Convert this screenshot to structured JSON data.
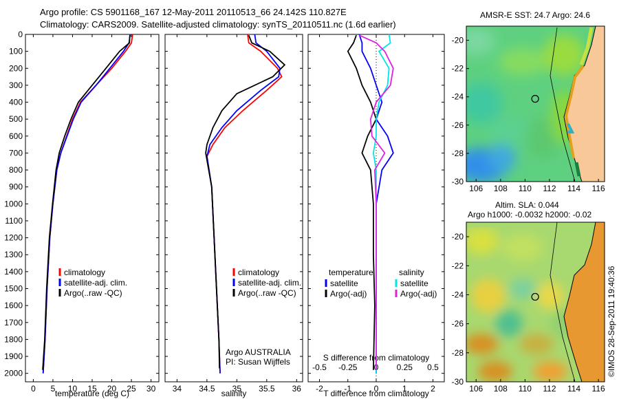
{
  "header": {
    "line1": "Argo profile: CS 5901168_167 12-May-2011 20110513_66 24.142S 110.827E",
    "line2": "Climatology: CARS2009. Satellite-adjusted climatology: synTS_20110511.nc (1.6d earlier)"
  },
  "colors": {
    "climatology": "#ff0000",
    "satellite": "#0000ff",
    "argo": "#000000",
    "sal_satellite": "#00e5e5",
    "sal_argo": "#e020e0"
  },
  "chart_data": [
    {
      "type": "line",
      "name": "temperature-profile",
      "xlabel": "temperature (deg C)",
      "ylabel": "",
      "xlim": [
        -2,
        32
      ],
      "ylim": [
        2050,
        0
      ],
      "xticks": [
        0,
        5,
        10,
        15,
        20,
        25,
        30
      ],
      "yticks": [
        0,
        100,
        200,
        300,
        400,
        500,
        600,
        700,
        800,
        900,
        1000,
        1100,
        1200,
        1300,
        1400,
        1500,
        1600,
        1700,
        1800,
        1900,
        2000
      ],
      "legend": [
        "climatology",
        "satellite-adj. clim.",
        "Argo(..raw -QC)"
      ],
      "legend_position": "lower-center",
      "series": [
        {
          "name": "climatology",
          "x": [
            25.3,
            25.0,
            23.5,
            20.0,
            16.0,
            12.0,
            10.0,
            8.5,
            7.0,
            6.0,
            5.0,
            4.2,
            3.5,
            3.0,
            2.5
          ],
          "y": [
            0,
            50,
            100,
            200,
            300,
            400,
            500,
            600,
            700,
            800,
            1000,
            1200,
            1500,
            1800,
            2000
          ]
        },
        {
          "name": "satellite-adj. clim.",
          "x": [
            24.7,
            24.4,
            23.0,
            19.5,
            16.0,
            12.2,
            10.2,
            8.6,
            7.0,
            6.0,
            5.0,
            4.2,
            3.5,
            3.0,
            2.5
          ],
          "y": [
            0,
            50,
            100,
            200,
            300,
            400,
            500,
            600,
            700,
            800,
            1000,
            1200,
            1500,
            1800,
            2000
          ]
        },
        {
          "name": "Argo(..raw -QC)",
          "x": [
            24.6,
            24.5,
            22.0,
            18.5,
            15.0,
            11.5,
            9.6,
            8.0,
            6.6,
            5.8,
            4.9,
            4.1,
            3.4,
            2.9,
            2.4
          ],
          "y": [
            5,
            50,
            100,
            200,
            300,
            400,
            500,
            600,
            700,
            800,
            1000,
            1200,
            1500,
            1800,
            1980
          ]
        }
      ]
    },
    {
      "type": "line",
      "name": "salinity-profile",
      "xlabel": "salinity",
      "ylabel": "",
      "xlim": [
        33.8,
        36.1
      ],
      "ylim": [
        2050,
        0
      ],
      "xticks": [
        34,
        34.5,
        35,
        35.5,
        36
      ],
      "legend": [
        "climatology",
        "satellite-adj. clim.",
        "Argo(..raw -QC)"
      ],
      "legend_position": "lower-right",
      "annotation": [
        "Argo AUSTRALIA",
        "PI: Susan Wijffels"
      ],
      "series": [
        {
          "name": "climatology",
          "x": [
            35.18,
            35.2,
            35.4,
            35.68,
            35.75,
            35.5,
            35.1,
            34.8,
            34.6,
            34.5,
            34.58,
            34.62,
            34.66,
            34.7,
            34.72
          ],
          "y": [
            0,
            50,
            100,
            200,
            250,
            330,
            450,
            550,
            650,
            720,
            900,
            1200,
            1500,
            1800,
            2000
          ]
        },
        {
          "name": "satellite-adj. clim.",
          "x": [
            35.3,
            35.32,
            35.5,
            35.72,
            35.7,
            35.4,
            35.0,
            34.75,
            34.55,
            34.5,
            34.58,
            34.62,
            34.66,
            34.7,
            34.72
          ],
          "y": [
            0,
            50,
            100,
            200,
            250,
            330,
            450,
            550,
            650,
            720,
            900,
            1200,
            1500,
            1800,
            2000
          ]
        },
        {
          "name": "Argo(..raw -QC)",
          "x": [
            35.2,
            35.25,
            35.55,
            35.8,
            35.6,
            35.0,
            34.75,
            34.6,
            34.5,
            34.48,
            34.58,
            34.62,
            34.66,
            34.7,
            34.71
          ],
          "y": [
            5,
            50,
            100,
            180,
            250,
            350,
            450,
            550,
            650,
            700,
            900,
            1200,
            1500,
            1800,
            1970
          ]
        }
      ]
    },
    {
      "type": "line",
      "name": "difference-profile",
      "xlabel": "T difference from climatology",
      "x2label": "S difference from climatology",
      "xlim": [
        -2.4,
        2.4
      ],
      "ylim": [
        2050,
        0
      ],
      "xticks": [
        -2,
        -1,
        0,
        1,
        2
      ],
      "x2ticks": [
        "-0.5",
        "-0.25",
        "0",
        "0.25",
        "0.5"
      ],
      "legend_headers": [
        "temperature",
        "salinity"
      ],
      "legend": [
        "satellite",
        "Argo(-adj)",
        "satellite",
        "Argo(-adj)"
      ],
      "legend_position": "lower-center",
      "series": [
        {
          "name": "satellite",
          "x": [
            -0.6,
            -0.5,
            -0.5,
            -0.2,
            0.0,
            0.2,
            0.0,
            0.4,
            0.6,
            0.2,
            0.0,
            0.0,
            0.0,
            0.0
          ],
          "y": [
            0,
            50,
            100,
            200,
            300,
            400,
            500,
            600,
            700,
            800,
            1000,
            1300,
            1600,
            2000
          ]
        },
        {
          "name": "Argo(-adj)",
          "x": [
            -0.7,
            -0.8,
            -1.0,
            -0.7,
            -0.5,
            -0.2,
            0.0,
            -0.3,
            -0.5,
            -0.2,
            -0.1,
            -0.1,
            -0.05,
            -0.1
          ],
          "y": [
            5,
            50,
            100,
            200,
            300,
            400,
            500,
            600,
            700,
            800,
            1000,
            1300,
            1600,
            1980
          ]
        },
        {
          "name": "satellite",
          "x": [
            0.45,
            0.5,
            0.1,
            0.45,
            0.4,
            0.1,
            0.0,
            0.0,
            -0.1,
            0.0,
            0.0,
            0.0,
            0.0,
            0.0
          ],
          "y": [
            0,
            50,
            100,
            200,
            300,
            400,
            500,
            600,
            700,
            800,
            1000,
            1300,
            1600,
            2000
          ]
        },
        {
          "name": "Argo(-adj)",
          "x": [
            -0.6,
            0.0,
            0.3,
            0.6,
            0.5,
            0.0,
            -0.2,
            -0.15,
            0.3,
            -0.05,
            0.0,
            0.0,
            0.0,
            0.0
          ],
          "y": [
            5,
            50,
            100,
            200,
            300,
            400,
            500,
            600,
            700,
            800,
            1000,
            1300,
            1600,
            1980
          ]
        }
      ]
    },
    {
      "type": "heatmap",
      "name": "sst-map",
      "title": "AMSR-E SST: 24.7 Argo: 24.6",
      "xlim": [
        105.2,
        116.5
      ],
      "ylim": [
        -30,
        -19
      ],
      "xticks": [
        106,
        108,
        110,
        112,
        114,
        116
      ],
      "yticks": [
        -20,
        -22,
        -24,
        -26,
        -28,
        -30
      ],
      "marker": {
        "lon": 110.827,
        "lat": -24.142
      }
    },
    {
      "type": "heatmap",
      "name": "sla-map",
      "title": "Altim. SLA: 0.044",
      "subtitle": "Argo h1000: -0.0032 h2000: -0.02",
      "xlim": [
        105.2,
        116.5
      ],
      "ylim": [
        -30,
        -19
      ],
      "xticks": [
        106,
        108,
        110,
        112,
        114,
        116
      ],
      "yticks": [
        -20,
        -22,
        -24,
        -26,
        -28,
        -30
      ],
      "marker": {
        "lon": 110.827,
        "lat": -24.142
      }
    }
  ],
  "footer": {
    "stamp": "©IMOS 28-Sep-2011 19:40:36"
  }
}
